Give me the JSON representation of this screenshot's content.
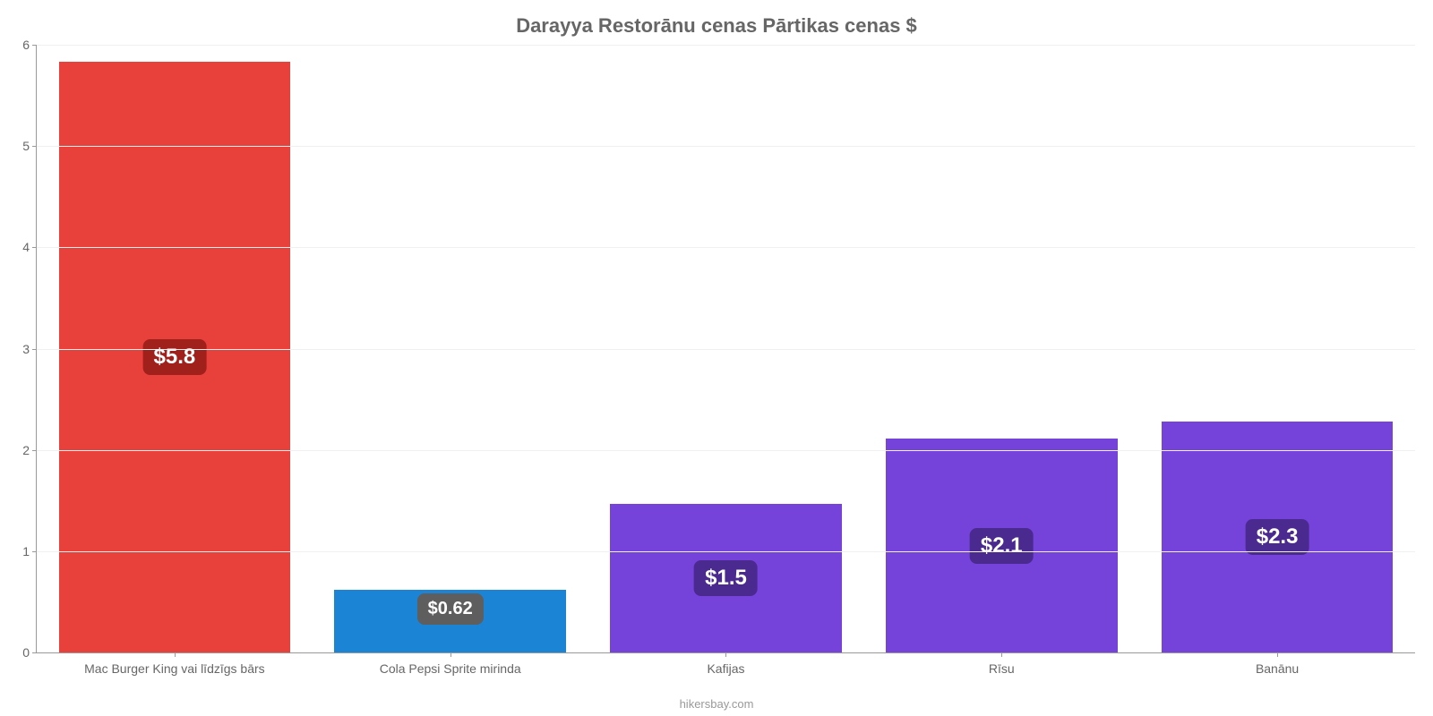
{
  "chart": {
    "type": "bar",
    "title": "Darayya Restorānu cenas Pārtikas cenas $",
    "title_fontsize": 22,
    "title_color": "#666666",
    "background_color": "#ffffff",
    "grid_color": "#f0f0f0",
    "axis_color": "#999999",
    "tick_label_color": "#666666",
    "tick_fontsize": 14,
    "ylim": [
      0,
      6
    ],
    "ytick_step": 1,
    "yticks": [
      0,
      1,
      2,
      3,
      4,
      5,
      6
    ],
    "bar_width_ratio": 0.84,
    "categories": [
      "Mac Burger King vai līdzīgs bārs",
      "Cola Pepsi Sprite mirinda",
      "Kafijas",
      "Rīsu",
      "Banānu"
    ],
    "values": [
      5.83,
      0.62,
      1.47,
      2.11,
      2.28
    ],
    "value_labels": [
      "$5.8",
      "$0.62",
      "$1.5",
      "$2.1",
      "$2.3"
    ],
    "label_positions": [
      "middle",
      "top-inside",
      "middle",
      "middle",
      "middle"
    ],
    "bar_colors": [
      "#e8403a",
      "#1c84d5",
      "#7542da",
      "#7542da",
      "#7542da"
    ],
    "badge_colors": [
      "#a0201c",
      "#5e5e5e",
      "#4b2a90",
      "#4b2a90",
      "#4b2a90"
    ],
    "value_label_fontsize": 24,
    "value_label_fontsize_small": 20,
    "value_label_color": "#ffffff",
    "attribution": "hikersbay.com",
    "attribution_fontsize": 13,
    "attribution_color": "#999999"
  }
}
